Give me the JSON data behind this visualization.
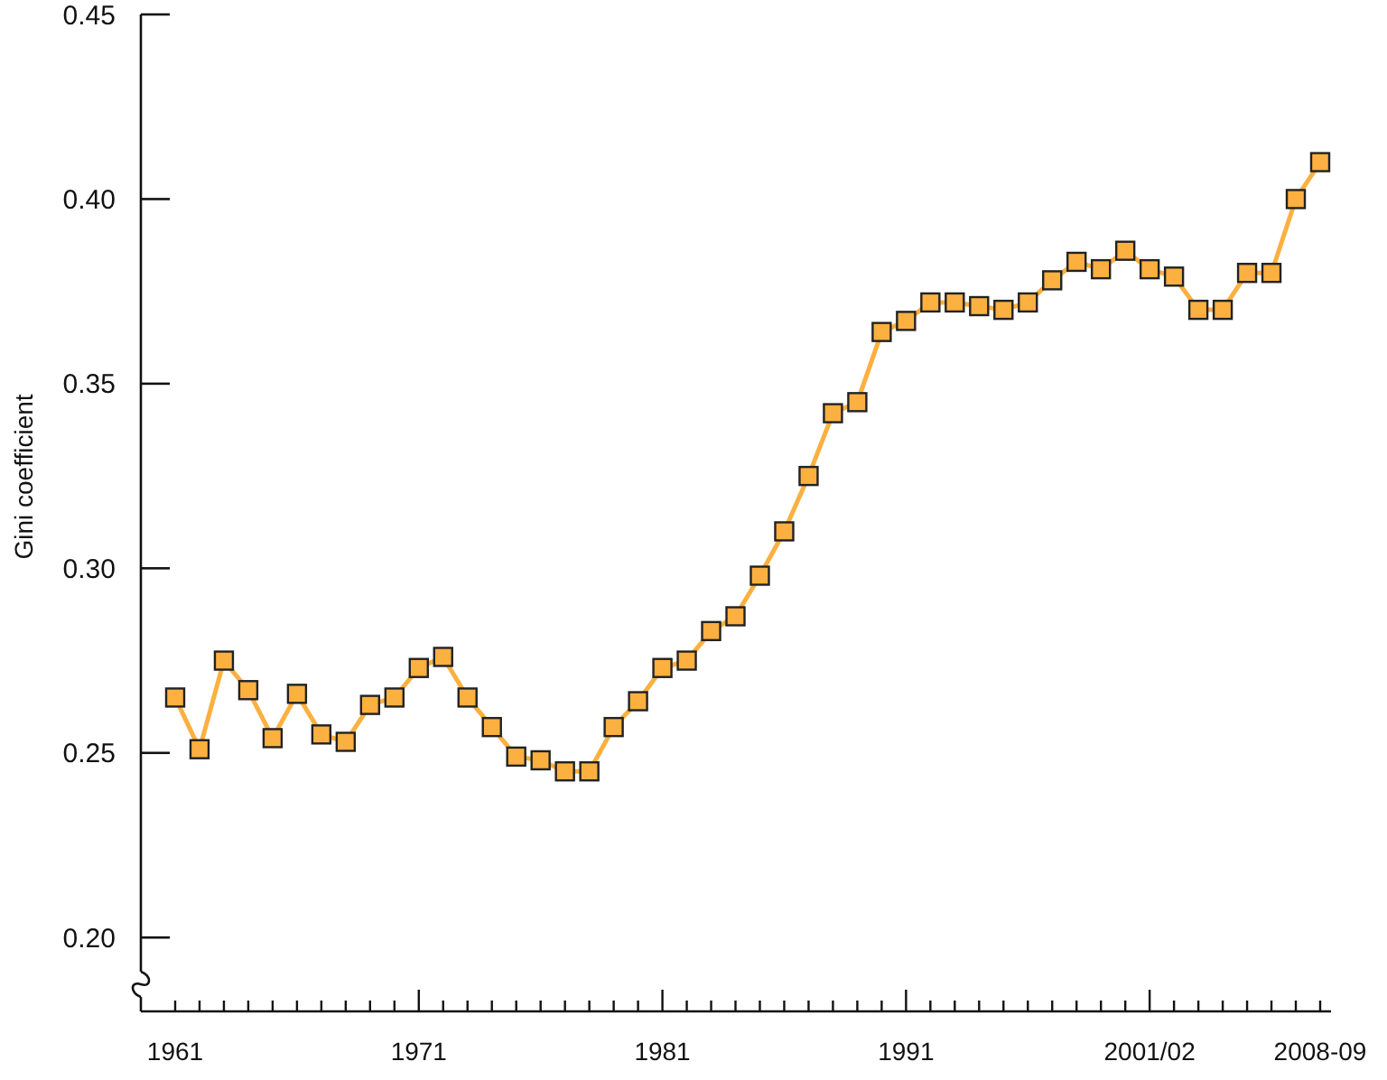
{
  "chart_data": {
    "type": "line",
    "ylabel": "Gini coefficient",
    "categories": [
      "1961",
      null,
      null,
      null,
      null,
      null,
      null,
      null,
      null,
      null,
      "1971",
      null,
      null,
      null,
      null,
      null,
      null,
      null,
      null,
      null,
      "1981",
      null,
      null,
      null,
      null,
      null,
      null,
      null,
      null,
      null,
      "1991",
      null,
      null,
      null,
      null,
      null,
      null,
      null,
      null,
      null,
      "2001/02",
      null,
      null,
      null,
      null,
      null,
      null,
      "2008-09"
    ],
    "series": [
      {
        "color": "#fbb040",
        "values": [
          0.265,
          0.251,
          0.275,
          0.267,
          0.254,
          0.266,
          0.255,
          0.253,
          0.263,
          0.265,
          0.273,
          0.276,
          0.265,
          0.257,
          0.249,
          0.248,
          0.245,
          0.245,
          0.257,
          0.264,
          0.273,
          0.275,
          0.283,
          0.287,
          0.298,
          0.31,
          0.325,
          0.342,
          0.345,
          0.364,
          0.367,
          0.372,
          0.372,
          0.371,
          0.37,
          0.372,
          0.378,
          0.383,
          0.381,
          0.386,
          0.381,
          0.379,
          0.37,
          0.37,
          0.38,
          0.38,
          0.4,
          0.41
        ]
      }
    ],
    "ylim": [
      0.18,
      0.45
    ],
    "yticks": [
      {
        "value": 0.2,
        "label": "0.20"
      },
      {
        "value": 0.25,
        "label": "0.25"
      },
      {
        "value": 0.3,
        "label": "0.30"
      },
      {
        "value": 0.35,
        "label": "0.35"
      },
      {
        "value": 0.4,
        "label": "0.40"
      },
      {
        "value": 0.45,
        "label": "0.45"
      }
    ],
    "grid": false,
    "marker": "square",
    "line_style": "solid"
  }
}
